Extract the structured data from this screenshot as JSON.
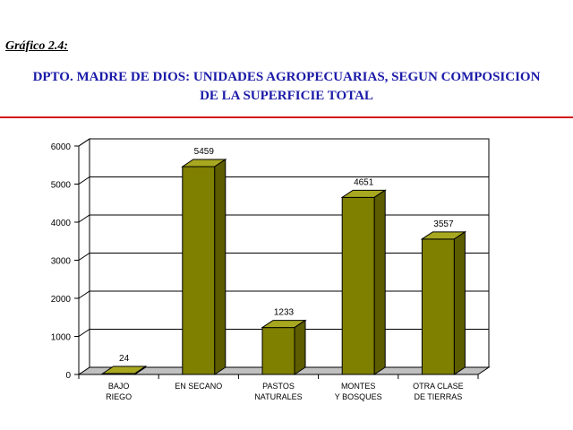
{
  "header": {
    "figure_label": "Gráfico 2.4:",
    "title_line1": "DPTO. MADRE DE DIOS: UNIDADES AGROPECUARIAS, SEGUN COMPOSICION",
    "title_line2": "DE LA SUPERFICIE TOTAL"
  },
  "colors": {
    "title": "#1a1aa8",
    "rule": "#d11a1a",
    "bar_front": "#7f7f00",
    "bar_top": "#a8a820",
    "bar_side": "#5c5c00"
  },
  "chart_data": {
    "type": "bar",
    "title": "",
    "xlabel": "",
    "ylabel": "",
    "categories": [
      [
        "BAJO",
        "RIEGO"
      ],
      [
        "EN SECANO"
      ],
      [
        "PASTOS",
        "NATURALES"
      ],
      [
        "MONTES",
        "Y BOSQUES"
      ],
      [
        "OTRA CLASE",
        "DE TIERRAS"
      ]
    ],
    "values": [
      24,
      5459,
      1233,
      4651,
      3557
    ],
    "value_labels": [
      "24",
      "5459",
      "1233",
      "4651",
      "3557"
    ],
    "ylim": [
      0,
      6000
    ],
    "yticks": [
      "0",
      "1000",
      "2000",
      "3000",
      "4000",
      "5000",
      "6000"
    ],
    "grid": true,
    "style": "3d-bar"
  }
}
